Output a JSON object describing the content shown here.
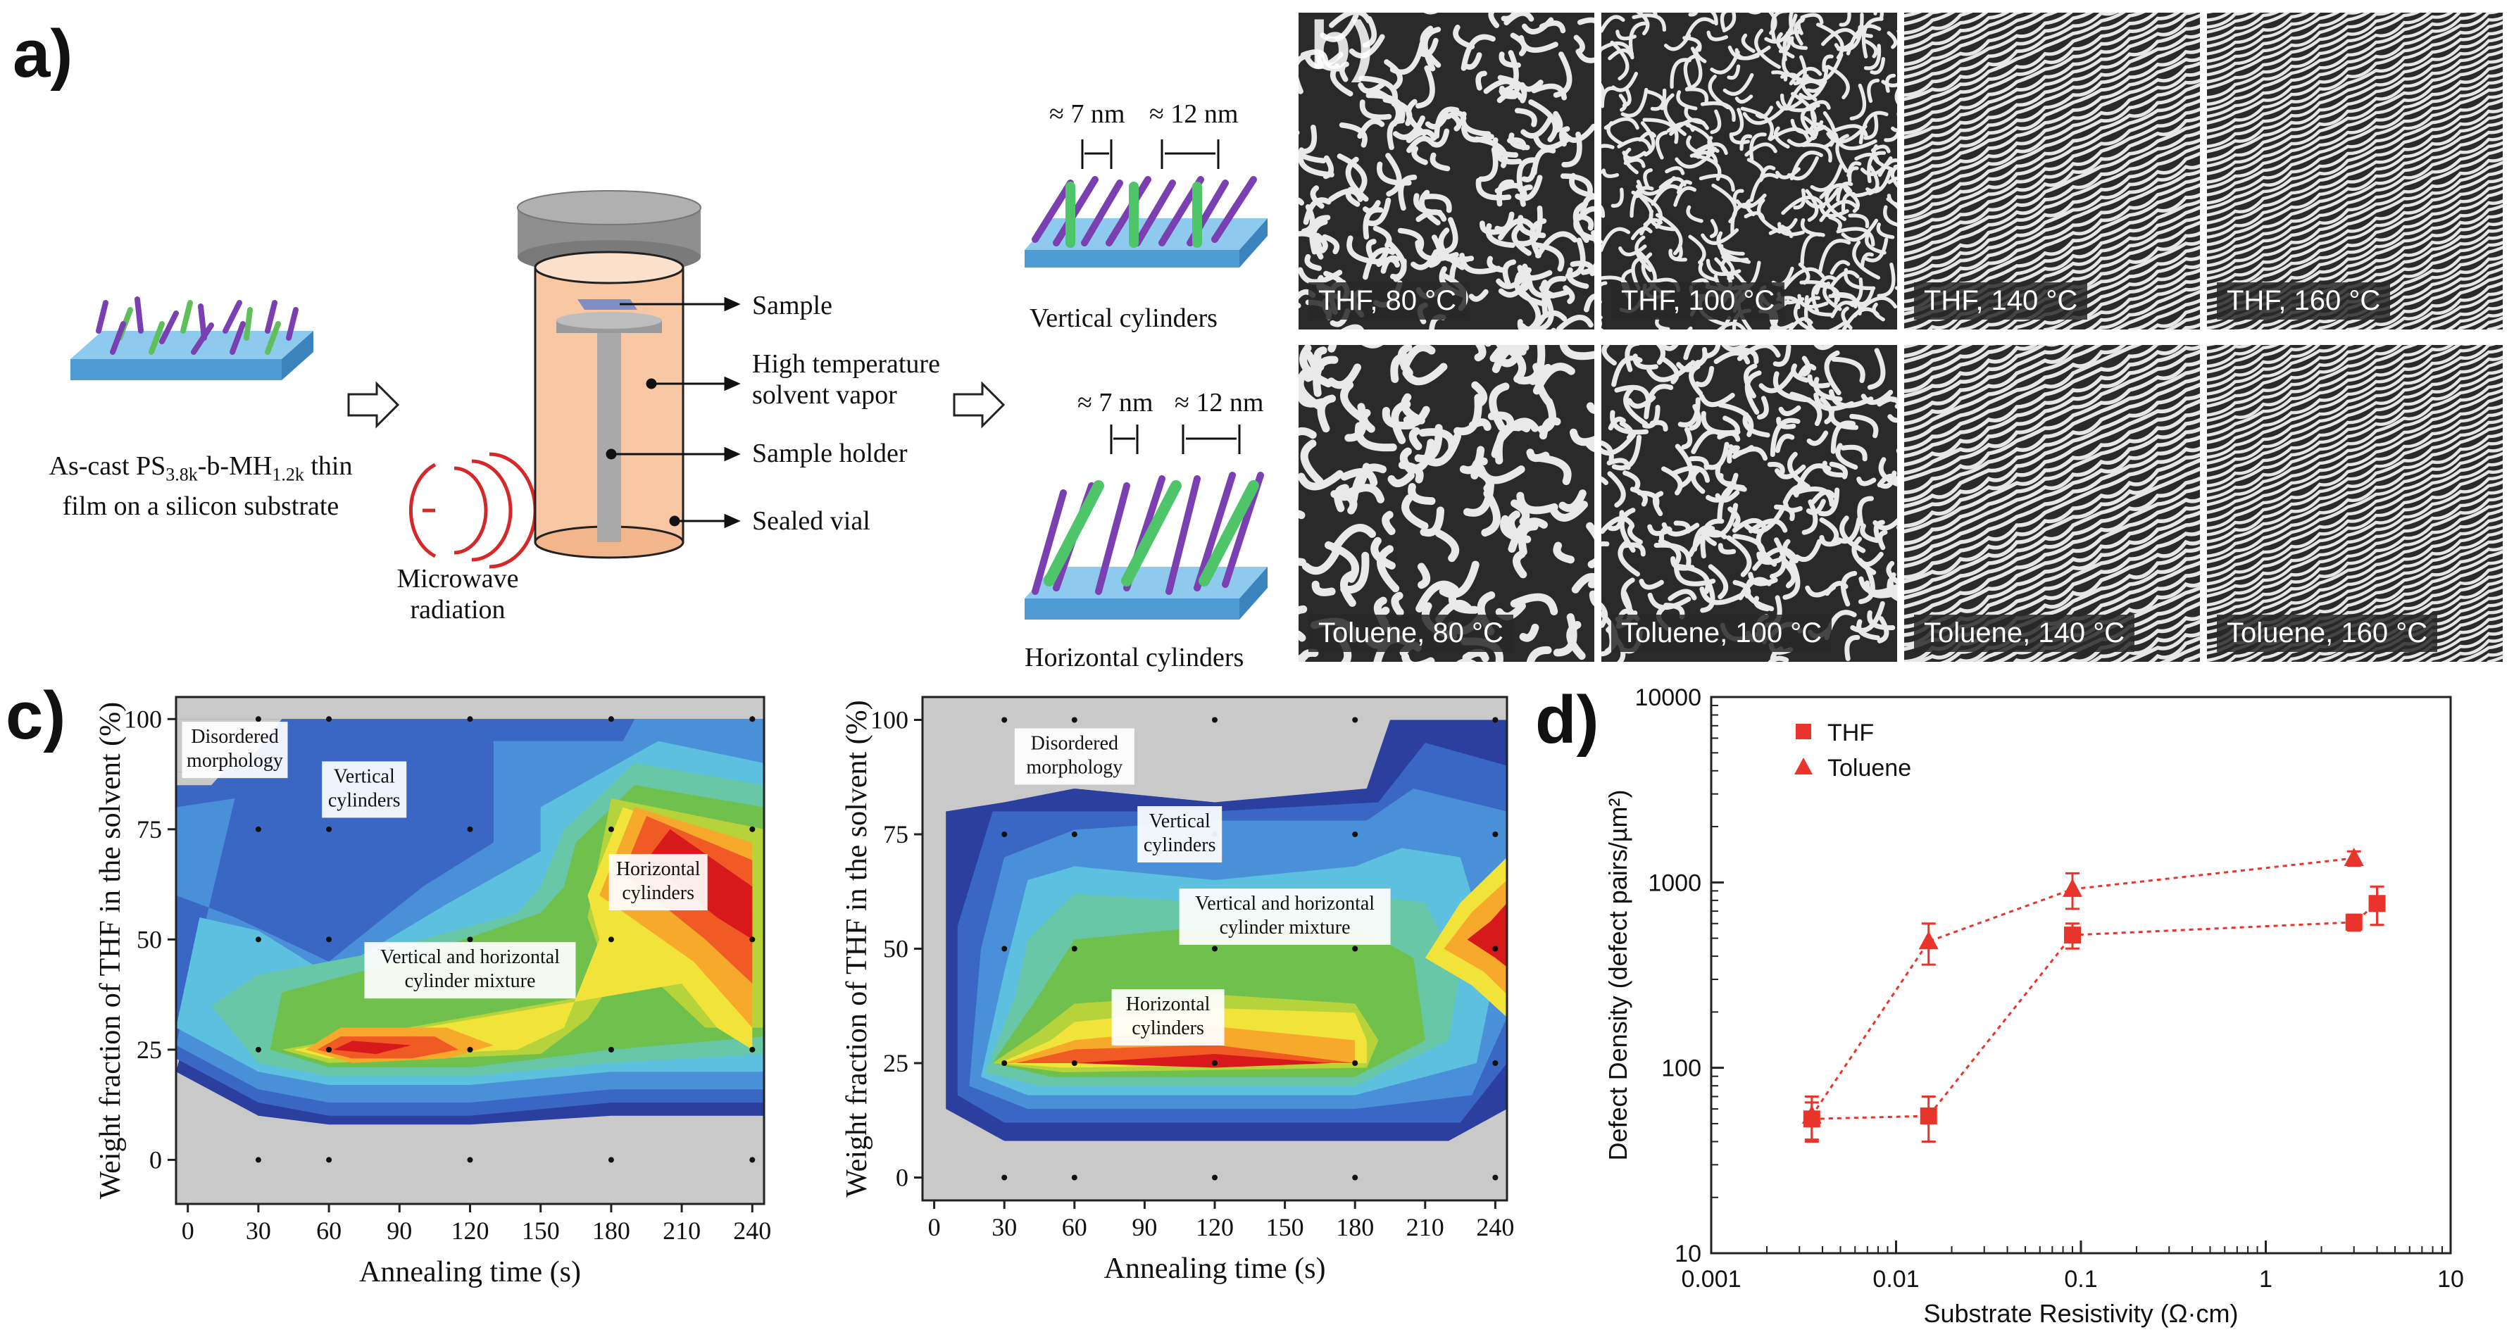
{
  "panel_a": {
    "letter": "a)",
    "film_caption": {
      "line1_pre": "As-cast PS",
      "sub1": "3.8k",
      "mid": "-b-MH",
      "sub2": "1.2k",
      "post": " thin",
      "line2": "film on a silicon substrate"
    },
    "microwave_label_line1": "Microwave",
    "microwave_label_line2": "radiation",
    "labels": {
      "sample": "Sample",
      "vapor_line1": "High temperature",
      "vapor_line2": "solvent vapor",
      "holder": "Sample holder",
      "vial": "Sealed vial"
    },
    "vertical": {
      "dim1": "≈ 7 nm",
      "dim2": "≈ 12 nm",
      "caption": "Vertical cylinders"
    },
    "horizontal": {
      "dim1": "≈ 7 nm",
      "dim2": "≈ 12 nm",
      "caption": "Horizontal cylinders"
    }
  },
  "panel_b": {
    "letter": "b)",
    "images": [
      {
        "label": "THF, 80 °C",
        "density": 0.9
      },
      {
        "label": "THF, 100 °C",
        "density": 1.4
      },
      {
        "label": "THF, 140 °C",
        "density": 1.8
      },
      {
        "label": "THF, 160 °C",
        "density": 2.0
      },
      {
        "label": "Toluene, 80 °C",
        "density": 0.6
      },
      {
        "label": "Toluene, 100 °C",
        "density": 1.0
      },
      {
        "label": "Toluene, 140 °C",
        "density": 1.6
      },
      {
        "label": "Toluene, 160 °C",
        "density": 2.0
      }
    ]
  },
  "panel_c": {
    "letter": "c)",
    "chart_data": [
      {
        "type": "heatmap",
        "title": "",
        "xlabel": "Annealing time (s)",
        "ylabel": "Weight fraction of THF in the solvent (%)",
        "x_ticks": [
          0,
          30,
          60,
          90,
          120,
          150,
          180,
          210,
          240
        ],
        "y_ticks": [
          0,
          25,
          50,
          75,
          100
        ],
        "xlim": [
          -5,
          245
        ],
        "ylim": [
          -10,
          105
        ],
        "sample_times": [
          30,
          60,
          120,
          180,
          240
        ],
        "sample_fractions": [
          0,
          25,
          50,
          75,
          100
        ],
        "annotations": [
          "Disordered morphology",
          "Vertical cylinders",
          "Horizontal cylinders",
          "Vertical and horizontal cylinder mixture"
        ]
      },
      {
        "type": "heatmap",
        "title": "",
        "xlabel": "Annealing time (s)",
        "ylabel": "Weight fraction of THF in the solvent (%)",
        "x_ticks": [
          0,
          30,
          60,
          90,
          120,
          150,
          180,
          210,
          240
        ],
        "y_ticks": [
          0,
          25,
          50,
          75,
          100
        ],
        "xlim": [
          -5,
          245
        ],
        "ylim": [
          -5,
          105
        ],
        "sample_times": [
          30,
          60,
          120,
          180,
          240
        ],
        "sample_fractions": [
          0,
          25,
          50,
          75,
          100
        ],
        "annotations": [
          "Disordered morphology",
          "Vertical cylinders",
          "Vertical and horizontal cylinder mixture",
          "Horizontal cylinders"
        ]
      }
    ],
    "left_annotations": {
      "disordered_1": "Disordered",
      "disordered_2": "morphology",
      "vertical_1": "Vertical",
      "vertical_2": "cylinders",
      "horizontal_1": "Horizontal",
      "horizontal_2": "cylinders",
      "mixture_1": "Vertical and horizontal",
      "mixture_2": "cylinder mixture"
    },
    "right_annotations": {
      "disordered_1": "Disordered",
      "disordered_2": "morphology",
      "vertical_1": "Vertical",
      "vertical_2": "cylinders",
      "mixture_1": "Vertical and horizontal",
      "mixture_2": "cylinder mixture",
      "horizontal_1": "Horizontal",
      "horizontal_2": "cylinders"
    },
    "contour_colors": [
      "#c9c9c9",
      "#2b3f9e",
      "#3a67c4",
      "#4a90d9",
      "#5dc0de",
      "#67c7a6",
      "#6fc04c",
      "#b6d33c",
      "#f2e33a",
      "#f7a92b",
      "#f05a25",
      "#d7191c"
    ]
  },
  "panel_d": {
    "letter": "d)",
    "chart_data": {
      "type": "scatter",
      "title": "",
      "xlabel": "Substrate Resistivity (Ω·cm)",
      "ylabel": "Defect Density (defect pairs/µm²)",
      "xscale": "log",
      "yscale": "log",
      "xlim": [
        0.001,
        10
      ],
      "ylim": [
        10,
        10000
      ],
      "x_ticks": [
        0.001,
        0.01,
        0.1,
        1,
        10
      ],
      "x_tick_labels": [
        "0.001",
        "0.01",
        "0.1",
        "1",
        "10"
      ],
      "y_ticks": [
        10,
        100,
        1000,
        10000
      ],
      "y_tick_labels": [
        "10",
        "100",
        "1000",
        "10000"
      ],
      "legend_position": "top-left",
      "series": [
        {
          "name": "THF",
          "marker": "square",
          "x": [
            0.0035,
            0.015,
            0.09,
            3.0,
            4.0
          ],
          "y": [
            53,
            55,
            520,
            610,
            770
          ],
          "err": [
            12,
            15,
            80,
            60,
            180
          ]
        },
        {
          "name": "Toluene",
          "marker": "triangle",
          "x": [
            0.0035,
            0.015,
            0.09,
            3.0
          ],
          "y": [
            55,
            480,
            920,
            1350
          ],
          "err": [
            15,
            120,
            200,
            120
          ]
        }
      ],
      "color": "#e8342a"
    }
  }
}
